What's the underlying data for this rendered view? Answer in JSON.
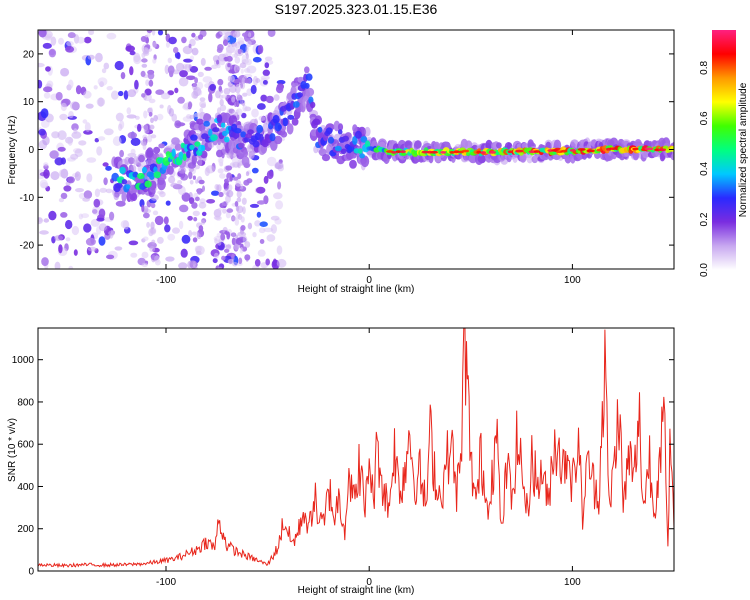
{
  "title": "S197.2025.323.01.15.E36",
  "chart_data": [
    {
      "type": "heatmap",
      "title": "S197.2025.323.01.15.E36",
      "xlabel": "Height of straight line (km)",
      "ylabel": "Frequency (Hz)",
      "xlim": [
        -163,
        150
      ],
      "ylim": [
        -25,
        25
      ],
      "xticks": [
        -100,
        0,
        100
      ],
      "xtick_labels": [
        "-100",
        "0",
        "100"
      ],
      "yticks": [
        -20,
        -10,
        0,
        10,
        20
      ],
      "ytick_labels": [
        "-20",
        "-10",
        "0",
        "10",
        "20"
      ],
      "colorbar": {
        "label": "Normalized spectral amplitude",
        "range": [
          0,
          0.95
        ],
        "ticks": [
          0,
          0.2,
          0.4,
          0.6,
          0.8
        ],
        "tick_labels": [
          "0.0",
          "0.2",
          "0.4",
          "0.6",
          "0.8"
        ],
        "colormap": [
          "#ffffff",
          "#c8a8f0",
          "#7a2de0",
          "#2a2aff",
          "#00c8ff",
          "#00ff80",
          "#40ff00",
          "#ffff00",
          "#ff9900",
          "#ff0000",
          "#ff2080"
        ]
      },
      "ridge": {
        "description_points": [
          {
            "x": -115,
            "f": -6,
            "amp": 0.45
          },
          {
            "x": -100,
            "f": -3,
            "amp": 0.5
          },
          {
            "x": -88,
            "f": 0,
            "amp": 0.45
          },
          {
            "x": -75,
            "f": 5,
            "amp": 0.4
          },
          {
            "x": -60,
            "f": 1,
            "amp": 0.3
          },
          {
            "x": -45,
            "f": 5,
            "amp": 0.35
          },
          {
            "x": -30,
            "f": 14,
            "amp": 0.3
          },
          {
            "x": -25,
            "f": 2,
            "amp": 0.3
          },
          {
            "x": -10,
            "f": 1,
            "amp": 0.35
          },
          {
            "x": 10,
            "f": -0.5,
            "amp": 0.6
          },
          {
            "x": 40,
            "f": -0.5,
            "amp": 0.8
          },
          {
            "x": 80,
            "f": -0.5,
            "amp": 0.8
          },
          {
            "x": 120,
            "f": 0,
            "amp": 0.8
          },
          {
            "x": 150,
            "f": 0,
            "amp": 0.9
          }
        ]
      }
    },
    {
      "type": "line",
      "xlabel": "Height of straight line (km)",
      "ylabel": "SNR (10 * v/v)",
      "xlim": [
        -163,
        150
      ],
      "ylim": [
        0,
        1150
      ],
      "xticks": [
        -100,
        0,
        100
      ],
      "xtick_labels": [
        "-100",
        "0",
        "100"
      ],
      "yticks": [
        0,
        200,
        400,
        600,
        800,
        1000
      ],
      "ytick_labels": [
        "0",
        "200",
        "400",
        "600",
        "800",
        "1000"
      ],
      "color": "#e8261c",
      "series": [
        {
          "name": "SNR",
          "x": [
            -163,
            -150,
            -140,
            -130,
            -120,
            -110,
            -100,
            -95,
            -90,
            -85,
            -80,
            -76,
            -74,
            -70,
            -65,
            -60,
            -55,
            -50,
            -45,
            -42,
            -38,
            -35,
            -32,
            -30,
            -27,
            -25,
            -22,
            -20,
            -17,
            -15,
            -12,
            -10,
            -7,
            -5,
            -2,
            0,
            2,
            4,
            7,
            10,
            12,
            15,
            18,
            20,
            22,
            25,
            28,
            30,
            33,
            35,
            38,
            40,
            43,
            45,
            47,
            50,
            53,
            55,
            58,
            60,
            63,
            65,
            68,
            70,
            73,
            75,
            78,
            80,
            83,
            85,
            88,
            90,
            93,
            95,
            98,
            100,
            103,
            105,
            108,
            110,
            113,
            116,
            118,
            120,
            123,
            125,
            128,
            130,
            133,
            135,
            138,
            140,
            143,
            145,
            147,
            148,
            150
          ],
          "values": [
            30,
            25,
            30,
            28,
            30,
            35,
            50,
            60,
            80,
            100,
            140,
            110,
            240,
            120,
            90,
            70,
            50,
            30,
            110,
            240,
            130,
            180,
            300,
            180,
            360,
            240,
            220,
            400,
            250,
            350,
            200,
            480,
            300,
            520,
            280,
            560,
            320,
            600,
            380,
            300,
            600,
            380,
            500,
            700,
            420,
            460,
            300,
            640,
            420,
            340,
            500,
            620,
            380,
            480,
            1140,
            500,
            320,
            560,
            300,
            440,
            620,
            180,
            520,
            320,
            640,
            480,
            260,
            560,
            380,
            500,
            300,
            540,
            640,
            460,
            600,
            400,
            620,
            260,
            540,
            420,
            360,
            1010,
            300,
            440,
            780,
            300,
            560,
            420,
            700,
            300,
            540,
            260,
            560,
            750,
            100,
            560,
            200
          ]
        }
      ]
    }
  ]
}
